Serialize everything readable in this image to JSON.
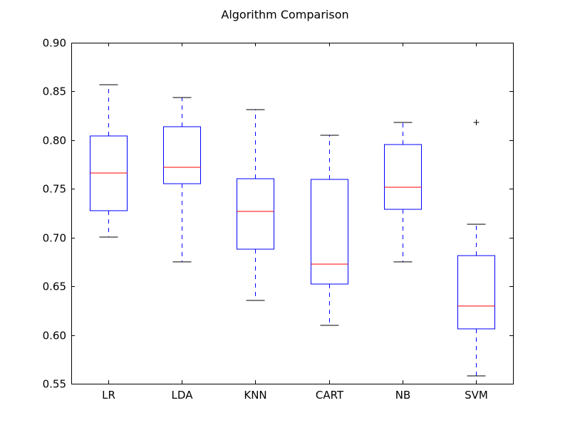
{
  "chart_data": {
    "type": "box",
    "title": "Algorithm Comparison",
    "xlabel": "",
    "ylabel": "",
    "ylim": [
      0.55,
      0.9
    ],
    "yticks": [
      "0.55",
      "0.60",
      "0.65",
      "0.70",
      "0.75",
      "0.80",
      "0.85",
      "0.90"
    ],
    "grid": false,
    "categories": [
      "LR",
      "LDA",
      "KNN",
      "CART",
      "NB",
      "SVM"
    ],
    "boxes": [
      {
        "name": "LR",
        "whisker_low": 0.7005,
        "q1": 0.7276,
        "median": 0.7663,
        "q3": 0.8043,
        "whisker_high": 0.8569,
        "outliers": []
      },
      {
        "name": "LDA",
        "whisker_low": 0.675,
        "q1": 0.7553,
        "median": 0.7721,
        "q3": 0.8138,
        "whisker_high": 0.8437,
        "outliers": []
      },
      {
        "name": "KNN",
        "whisker_low": 0.6355,
        "q1": 0.6881,
        "median": 0.7268,
        "q3": 0.7604,
        "whisker_high": 0.8313,
        "outliers": []
      },
      {
        "name": "CART",
        "whisker_low": 0.6099,
        "q1": 0.6523,
        "median": 0.6728,
        "q3": 0.7597,
        "whisker_high": 0.805,
        "outliers": []
      },
      {
        "name": "NB",
        "whisker_low": 0.675,
        "q1": 0.729,
        "median": 0.7517,
        "q3": 0.7955,
        "whisker_high": 0.8182,
        "outliers": []
      },
      {
        "name": "SVM",
        "whisker_low": 0.558,
        "q1": 0.6063,
        "median": 0.6297,
        "q3": 0.6815,
        "whisker_high": 0.7137,
        "outliers": [
          0.8182
        ]
      }
    ],
    "colors": {
      "box": "#0000ff",
      "median": "#ff0000",
      "whisker": "#0000ff",
      "cap": "#000000",
      "flier": "#000000"
    }
  }
}
